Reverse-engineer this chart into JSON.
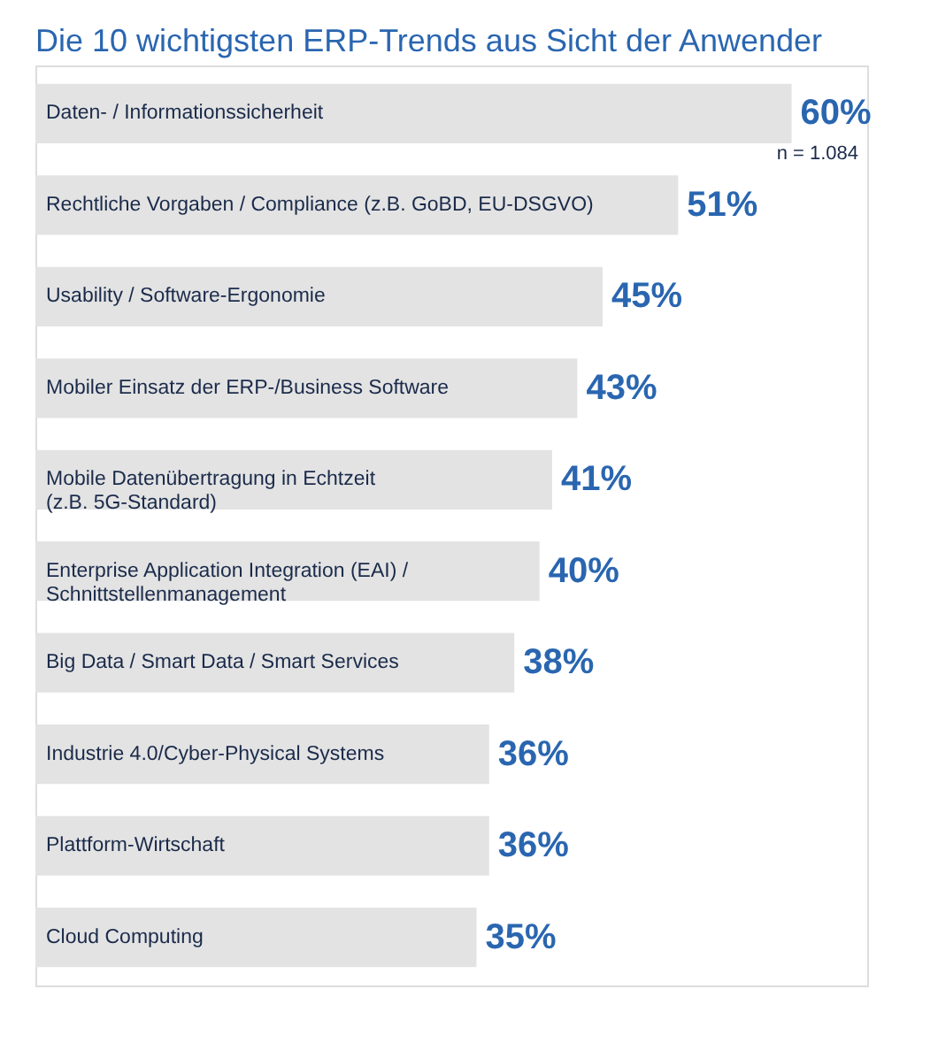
{
  "chart_data": {
    "type": "bar",
    "orientation": "horizontal",
    "title": "Die 10 wichtigsten ERP-Trends aus Sicht der Anwender",
    "categories": [
      "Daten- / Informationssicherheit",
      "Rechtliche Vorgaben / Compliance (z.B. GoBD, EU-DSGVO)",
      "Usability / Software-Ergonomie",
      "Mobiler Einsatz der ERP-/Business Software",
      "Mobile Datenübertragung in Echtzeit\n(z.B. 5G-Standard)",
      "Enterprise Application Integration (EAI) /\nSchnittstellenmanagement",
      "Big Data / Smart Data / Smart Services",
      "Industrie 4.0/Cyber-Physical Systems",
      "Plattform-Wirtschaft",
      "Cloud Computing"
    ],
    "values": [
      60,
      51,
      45,
      43,
      41,
      40,
      38,
      36,
      36,
      35
    ],
    "value_labels": [
      "60%",
      "51%",
      "45%",
      "43%",
      "41%",
      "40%",
      "38%",
      "36%",
      "36%",
      "35%"
    ],
    "colors": [
      "#e3e3e3",
      "#e3e3e3",
      "#e3e3e3",
      "#e3e3e3",
      "#e3e3e3",
      "#e3e3e3",
      "#e3e3e3",
      "#e3e3e3",
      "#e3e3e3",
      "#e3e3e3"
    ],
    "annotations": [
      "n = 1.084"
    ]
  }
}
